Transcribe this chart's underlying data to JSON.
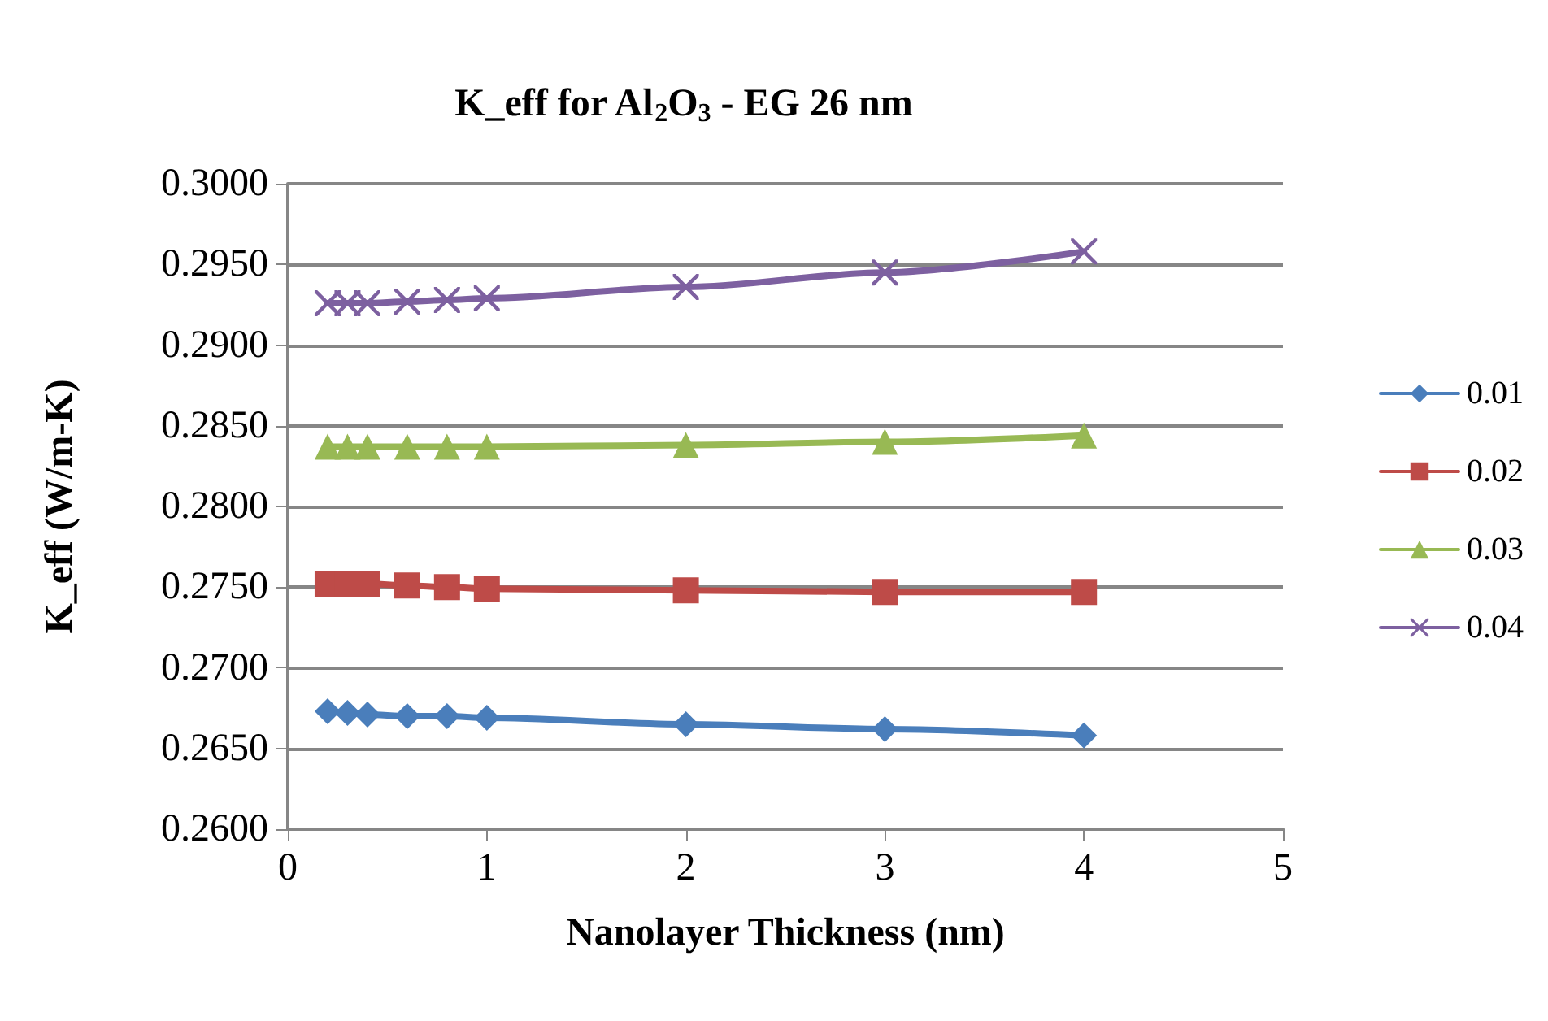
{
  "chart_data": {
    "type": "line",
    "title": "K_eff for Al$_{2}$O$_{3}$ - EG 26 nm",
    "xlabel": "Nanolayer Thickness (nm)",
    "ylabel": "K_eff (W/m-K)",
    "x": [
      0.2,
      0.3,
      0.4,
      0.6,
      0.8,
      1,
      2,
      3,
      4
    ],
    "series": [
      {
        "name": "0.01",
        "color": "#4a7ebb",
        "marker": "diamond",
        "values": [
          0.2673,
          0.2672,
          0.2671,
          0.267,
          0.267,
          0.2669,
          0.2665,
          0.2662,
          0.2658
        ]
      },
      {
        "name": "0.02",
        "color": "#be4b48",
        "marker": "square",
        "values": [
          0.2752,
          0.2752,
          0.2752,
          0.2751,
          0.275,
          0.2749,
          0.2748,
          0.2747,
          0.2747
        ]
      },
      {
        "name": "0.03",
        "color": "#98b954",
        "marker": "triangle",
        "values": [
          0.2837,
          0.2837,
          0.2837,
          0.2837,
          0.2837,
          0.2837,
          0.2838,
          0.284,
          0.2844
        ]
      },
      {
        "name": "0.04",
        "color": "#7d60a0",
        "marker": "cross",
        "values": [
          0.2926,
          0.2926,
          0.2926,
          0.2927,
          0.2928,
          0.2929,
          0.2936,
          0.2945,
          0.2958
        ]
      }
    ],
    "xlim": [
      0,
      5
    ],
    "xticks": [
      0,
      1,
      2,
      3,
      4,
      5
    ],
    "ylim": [
      0.26,
      0.3
    ],
    "yticks": [
      {
        "value": 0.26,
        "label": "0.2600"
      },
      {
        "value": 0.265,
        "label": "0.2650"
      },
      {
        "value": 0.27,
        "label": "0.2700"
      },
      {
        "value": 0.275,
        "label": "0.2750"
      },
      {
        "value": 0.28,
        "label": "0.2800"
      },
      {
        "value": 0.285,
        "label": "0.2850"
      },
      {
        "value": 0.29,
        "label": "0.2900"
      },
      {
        "value": 0.295,
        "label": "0.2950"
      },
      {
        "value": 0.3,
        "label": "0.3000"
      }
    ],
    "grid": "y",
    "legend": "right",
    "line_style": "solid"
  }
}
